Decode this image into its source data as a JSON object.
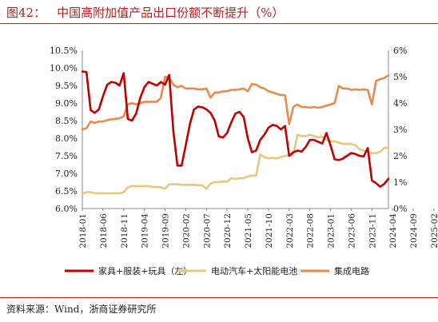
{
  "header": {
    "label": "图42：",
    "title": "中国高附加值产品出口份额不断提升（%）"
  },
  "source": "资料来源：Wind，浙商证券研究所",
  "colors": {
    "accent": "#b22222",
    "s1": "#c00000",
    "s2": "#e3c880",
    "s3": "#e88a4e"
  },
  "chart_data": {
    "type": "line",
    "left_axis": {
      "min": 6.0,
      "max": 10.5,
      "ticks": [
        "6.0%",
        "6.5%",
        "7.0%",
        "7.5%",
        "8.0%",
        "8.5%",
        "9.0%",
        "9.5%",
        "10.0%",
        "10.5%"
      ]
    },
    "right_axis": {
      "min": 0,
      "max": 6,
      "ticks": [
        "0%",
        "1%",
        "2%",
        "3%",
        "4%",
        "5%",
        "6%"
      ]
    },
    "x_labels": [
      "2018-01",
      "2018-06",
      "2018-11",
      "2019-04",
      "2019-09",
      "2020-02",
      "2020-07",
      "2020-12",
      "2021-05",
      "2021-10",
      "2022-03",
      "2022-08",
      "2023-01",
      "2023-06",
      "2023-11",
      "2024-04",
      "2024-09",
      "2025-02"
    ],
    "start_index": 0,
    "series": [
      {
        "name": "家具+服装+玩具（左）",
        "axis": "left",
        "color": "#c00000",
        "values": [
          9.9,
          9.88,
          8.8,
          8.72,
          8.82,
          9.2,
          9.52,
          9.6,
          9.58,
          9.5,
          9.85,
          8.55,
          8.5,
          8.7,
          9.15,
          9.45,
          9.6,
          9.55,
          9.5,
          9.6,
          9.52,
          9.8,
          8.2,
          7.22,
          7.22,
          7.8,
          8.4,
          8.82,
          8.9,
          8.88,
          8.82,
          8.72,
          8.5,
          8.05,
          8.02,
          8.15,
          8.45,
          8.7,
          8.75,
          8.6,
          8.0,
          7.6,
          7.65,
          7.95,
          8.1,
          8.3,
          8.38,
          8.35,
          8.25,
          8.35,
          7.5,
          7.6,
          7.65,
          7.62,
          7.75,
          7.95,
          7.95,
          7.9,
          7.85,
          8.15,
          7.8,
          7.4,
          7.38,
          7.42,
          7.5,
          7.58,
          7.55,
          7.5,
          7.48,
          7.72,
          6.8,
          6.72,
          6.62,
          6.7,
          6.85
        ]
      },
      {
        "name": "电动汽车+太阳能电池",
        "axis": "right",
        "color": "#e3c880",
        "values": [
          0.55,
          0.62,
          0.62,
          0.58,
          0.58,
          0.58,
          0.58,
          0.58,
          0.58,
          0.58,
          0.62,
          0.8,
          0.85,
          0.85,
          0.85,
          0.85,
          0.85,
          0.82,
          0.82,
          0.8,
          0.75,
          0.92,
          0.92,
          0.92,
          0.9,
          0.9,
          0.9,
          0.9,
          0.88,
          0.88,
          0.75,
          0.95,
          1.0,
          1.0,
          1.02,
          1.02,
          1.15,
          1.12,
          1.15,
          1.15,
          1.22,
          1.25,
          1.25,
          2.05,
          1.95,
          1.9,
          1.92,
          1.9,
          1.95,
          2.0,
          2.0,
          2.05,
          2.8,
          2.75,
          2.75,
          2.8,
          2.75,
          2.7,
          2.72,
          2.6,
          2.55,
          2.55,
          2.5,
          2.45,
          2.45,
          2.45,
          2.4,
          2.25,
          2.2,
          2.15,
          2.1,
          2.1,
          2.15,
          2.3,
          2.3
        ]
      },
      {
        "name": "集成电路",
        "axis": "right",
        "color": "#e88a4e",
        "values": [
          3.0,
          3.05,
          3.3,
          3.25,
          3.3,
          3.3,
          3.35,
          3.38,
          3.4,
          3.42,
          3.5,
          3.95,
          4.0,
          3.95,
          4.0,
          4.05,
          4.05,
          4.05,
          4.05,
          4.2,
          5.0,
          4.95,
          4.7,
          4.6,
          4.65,
          4.55,
          4.55,
          4.55,
          4.52,
          4.52,
          4.55,
          4.2,
          4.4,
          4.4,
          4.45,
          4.45,
          4.5,
          4.5,
          4.52,
          4.55,
          4.45,
          4.72,
          4.7,
          4.6,
          4.55,
          4.45,
          4.4,
          4.35,
          4.3,
          4.3,
          3.2,
          3.85,
          3.95,
          3.85,
          3.85,
          3.82,
          3.85,
          3.82,
          3.85,
          3.9,
          3.95,
          4.0,
          4.65,
          4.55,
          4.55,
          4.5,
          4.52,
          4.5,
          4.52,
          4.5,
          3.95,
          4.85,
          4.9,
          4.95,
          5.05
        ]
      }
    ]
  }
}
